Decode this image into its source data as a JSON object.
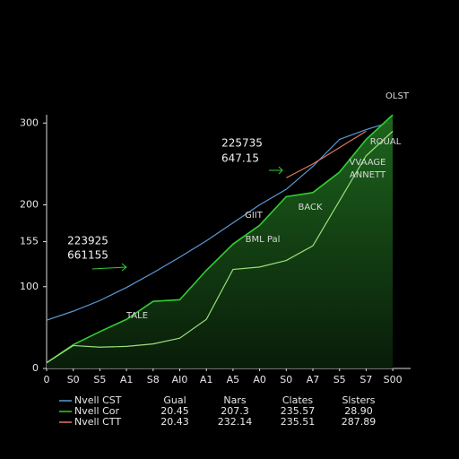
{
  "chart_data": {
    "type": "line",
    "categories": [
      "0",
      "S0",
      "S5",
      "A1",
      "S8",
      "AI0",
      "A1",
      "A5",
      "A0",
      "S0",
      "A7",
      "S5",
      "S7",
      "S00"
    ],
    "ylim": [
      0,
      320
    ],
    "yticks": [
      0,
      100,
      155,
      200,
      300
    ],
    "series": [
      {
        "name": "Nvell CST",
        "color": "#5b9bd5",
        "values": [
          59,
          70,
          83,
          99,
          117,
          136,
          156,
          178,
          200,
          219,
          247,
          280,
          292,
          302
        ]
      },
      {
        "name": "Nvell Cor",
        "color": "#33cc33",
        "area": true,
        "values": [
          7,
          29,
          45,
          60,
          82,
          84,
          120,
          152,
          175,
          210,
          215,
          240,
          280,
          310
        ]
      },
      {
        "name": "Nvell CTT",
        "color": "#e07a5f",
        "values": [
          null,
          null,
          null,
          null,
          null,
          null,
          null,
          null,
          null,
          233,
          250,
          270,
          290,
          null
        ]
      },
      {
        "color": "#9be07a",
        "values": [
          7,
          28,
          26,
          27,
          30,
          37,
          60,
          121,
          124,
          132,
          150,
          205,
          260,
          290
        ]
      }
    ],
    "annotations": [
      "225735",
      "647.15",
      "223925",
      "661155",
      "TALE",
      "GIIT",
      "BACK",
      "BML Pal",
      "ROUAL",
      "VVAAGE",
      "ANNETT",
      "OLST"
    ],
    "table": {
      "headers": [
        "Gual",
        "Nars",
        "Clates",
        "Slsters"
      ],
      "rows": [
        [
          "20.45",
          "207.3",
          "235.57",
          "28.90"
        ],
        [
          "20.43",
          "232.14",
          "235.51",
          "287.89"
        ]
      ]
    }
  }
}
